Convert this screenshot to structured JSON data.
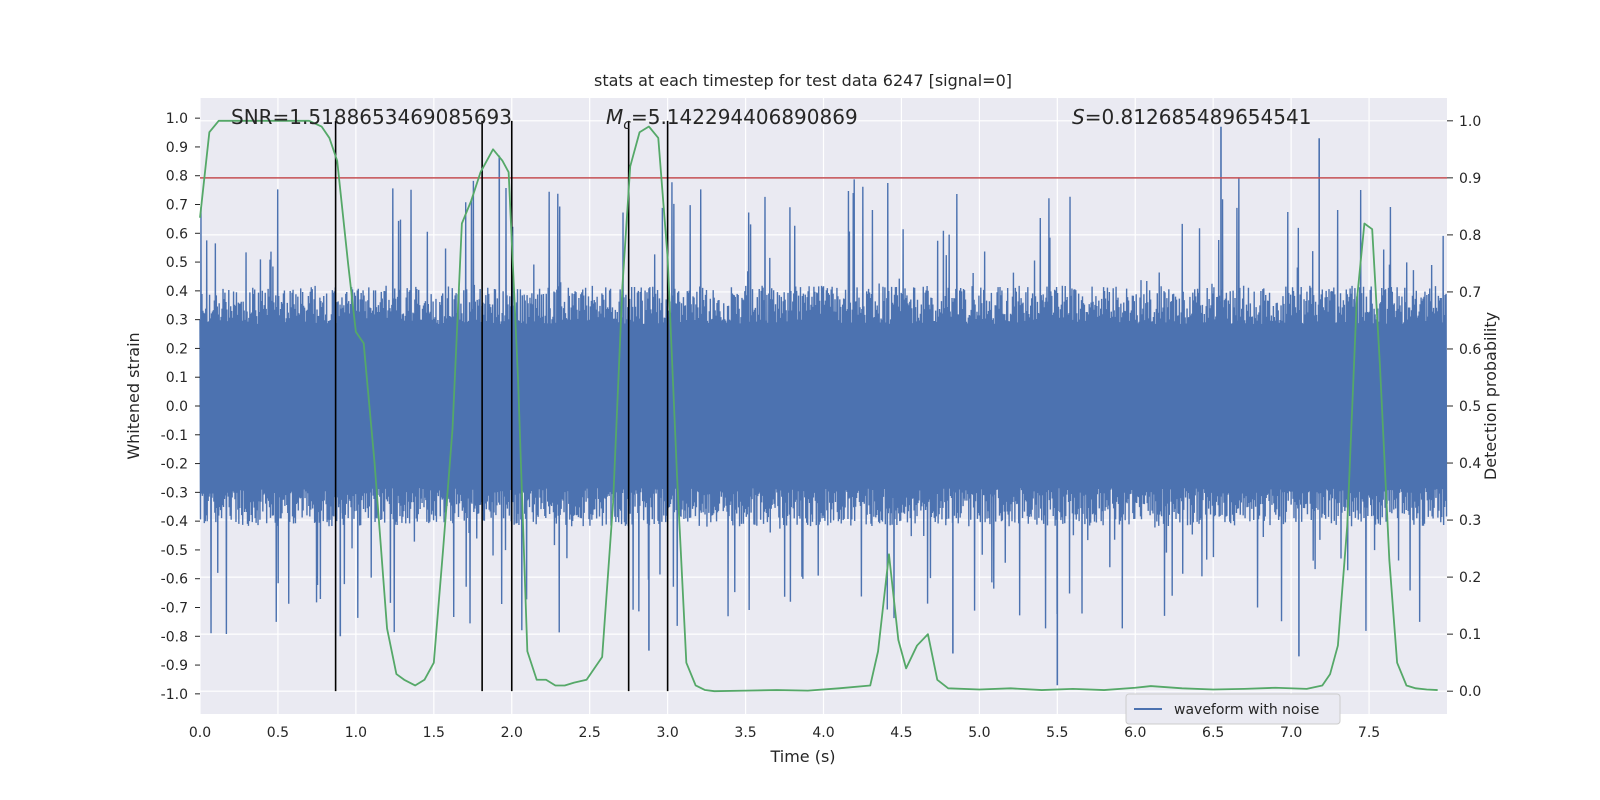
{
  "chart_data": {
    "type": "line",
    "title": "stats at each timestep for test data 6247 [signal=0]",
    "xlabel": "Time (s)",
    "ylabel": "Whitened strain",
    "y2label": "Detection probability",
    "xlim": [
      0.0,
      8.0
    ],
    "ylim": [
      -1.07,
      1.07
    ],
    "y2lim": [
      -0.04,
      1.04
    ],
    "xticks": [
      "0.0",
      "0.5",
      "1.0",
      "1.5",
      "2.0",
      "2.5",
      "3.0",
      "3.5",
      "4.0",
      "4.5",
      "5.0",
      "5.5",
      "6.0",
      "6.5",
      "7.0",
      "7.5"
    ],
    "xtick_values": [
      0.0,
      0.5,
      1.0,
      1.5,
      2.0,
      2.5,
      3.0,
      3.5,
      4.0,
      4.5,
      5.0,
      5.5,
      6.0,
      6.5,
      7.0,
      7.5
    ],
    "yticks": [
      "1.0",
      "0.9",
      "0.8",
      "0.7",
      "0.6",
      "0.5",
      "0.4",
      "0.3",
      "0.2",
      "0.1",
      "0.0",
      "-0.1",
      "-0.2",
      "-0.3",
      "-0.4",
      "-0.5",
      "-0.6",
      "-0.7",
      "-0.8",
      "-0.9",
      "-1.0"
    ],
    "ytick_values": [
      1.0,
      0.9,
      0.8,
      0.7,
      0.6,
      0.5,
      0.4,
      0.3,
      0.2,
      0.1,
      0.0,
      -0.1,
      -0.2,
      -0.3,
      -0.4,
      -0.5,
      -0.6,
      -0.7,
      -0.8,
      -0.9,
      -1.0
    ],
    "y2ticks": [
      "1.0",
      "0.9",
      "0.8",
      "0.7",
      "0.6",
      "0.5",
      "0.4",
      "0.3",
      "0.2",
      "0.1",
      "0.0"
    ],
    "y2tick_values": [
      1.0,
      0.9,
      0.8,
      0.7,
      0.6,
      0.5,
      0.4,
      0.3,
      0.2,
      0.1,
      0.0
    ],
    "annotations": {
      "snr": "SNR=1.5188653469085693",
      "mc_symbol": "M",
      "mc_sub": "c",
      "mc_value": "=5.142294406890869",
      "s_symbol": "S",
      "s_value": "=0.812685489654541"
    },
    "threshold": {
      "value": 0.9,
      "axis": "right",
      "color": "#c44e52"
    },
    "vlines": [
      0.87,
      1.81,
      2.0,
      2.75,
      3.0
    ],
    "series": [
      {
        "name": "waveform with noise",
        "axis": "left",
        "color": "#4c72b0",
        "kind": "noise",
        "envelope_core": 0.38,
        "envelope_max": 0.8,
        "spikes": [
          {
            "t": 5.5,
            "v": -0.97
          },
          {
            "t": 6.55,
            "v": 0.97
          },
          {
            "t": 7.18,
            "v": 0.93
          },
          {
            "t": 0.9,
            "v": -0.8
          },
          {
            "t": 1.92,
            "v": 0.87
          },
          {
            "t": 2.88,
            "v": -0.85
          },
          {
            "t": 4.83,
            "v": -0.86
          },
          {
            "t": 7.05,
            "v": -0.87
          }
        ]
      },
      {
        "name": "detection probability",
        "axis": "right",
        "color": "#55a868",
        "x": [
          0.0,
          0.06,
          0.12,
          0.2,
          0.3,
          0.4,
          0.5,
          0.6,
          0.7,
          0.78,
          0.83,
          0.88,
          0.95,
          1.0,
          1.05,
          1.12,
          1.2,
          1.26,
          1.31,
          1.38,
          1.44,
          1.5,
          1.56,
          1.62,
          1.68,
          1.74,
          1.8,
          1.88,
          1.94,
          1.98,
          2.04,
          2.1,
          2.16,
          2.22,
          2.28,
          2.34,
          2.4,
          2.48,
          2.58,
          2.65,
          2.71,
          2.76,
          2.82,
          2.88,
          2.94,
          3.0,
          3.06,
          3.12,
          3.18,
          3.24,
          3.3,
          3.5,
          3.7,
          3.9,
          4.1,
          4.3,
          4.35,
          4.42,
          4.48,
          4.53,
          4.6,
          4.67,
          4.73,
          4.8,
          5.0,
          5.2,
          5.4,
          5.6,
          5.8,
          6.0,
          6.1,
          6.3,
          6.5,
          6.7,
          6.9,
          7.1,
          7.2,
          7.25,
          7.3,
          7.36,
          7.42,
          7.47,
          7.52,
          7.57,
          7.63,
          7.68,
          7.74,
          7.8,
          7.87,
          7.94
        ],
        "y": [
          0.83,
          0.98,
          1.0,
          1.0,
          1.0,
          1.0,
          1.0,
          1.0,
          1.0,
          0.99,
          0.97,
          0.93,
          0.75,
          0.63,
          0.61,
          0.4,
          0.11,
          0.03,
          0.02,
          0.01,
          0.02,
          0.05,
          0.25,
          0.46,
          0.82,
          0.86,
          0.91,
          0.95,
          0.93,
          0.91,
          0.55,
          0.07,
          0.02,
          0.02,
          0.01,
          0.01,
          0.015,
          0.02,
          0.06,
          0.33,
          0.71,
          0.92,
          0.98,
          0.99,
          0.97,
          0.76,
          0.38,
          0.05,
          0.01,
          0.002,
          0.0,
          0.001,
          0.002,
          0.001,
          0.005,
          0.01,
          0.07,
          0.24,
          0.09,
          0.04,
          0.08,
          0.1,
          0.02,
          0.005,
          0.003,
          0.005,
          0.002,
          0.004,
          0.002,
          0.006,
          0.009,
          0.005,
          0.003,
          0.004,
          0.006,
          0.004,
          0.01,
          0.03,
          0.08,
          0.29,
          0.68,
          0.82,
          0.81,
          0.57,
          0.23,
          0.05,
          0.01,
          0.005,
          0.003,
          0.002
        ]
      }
    ],
    "legend": {
      "label": "waveform with noise",
      "position": "lower-right"
    }
  }
}
